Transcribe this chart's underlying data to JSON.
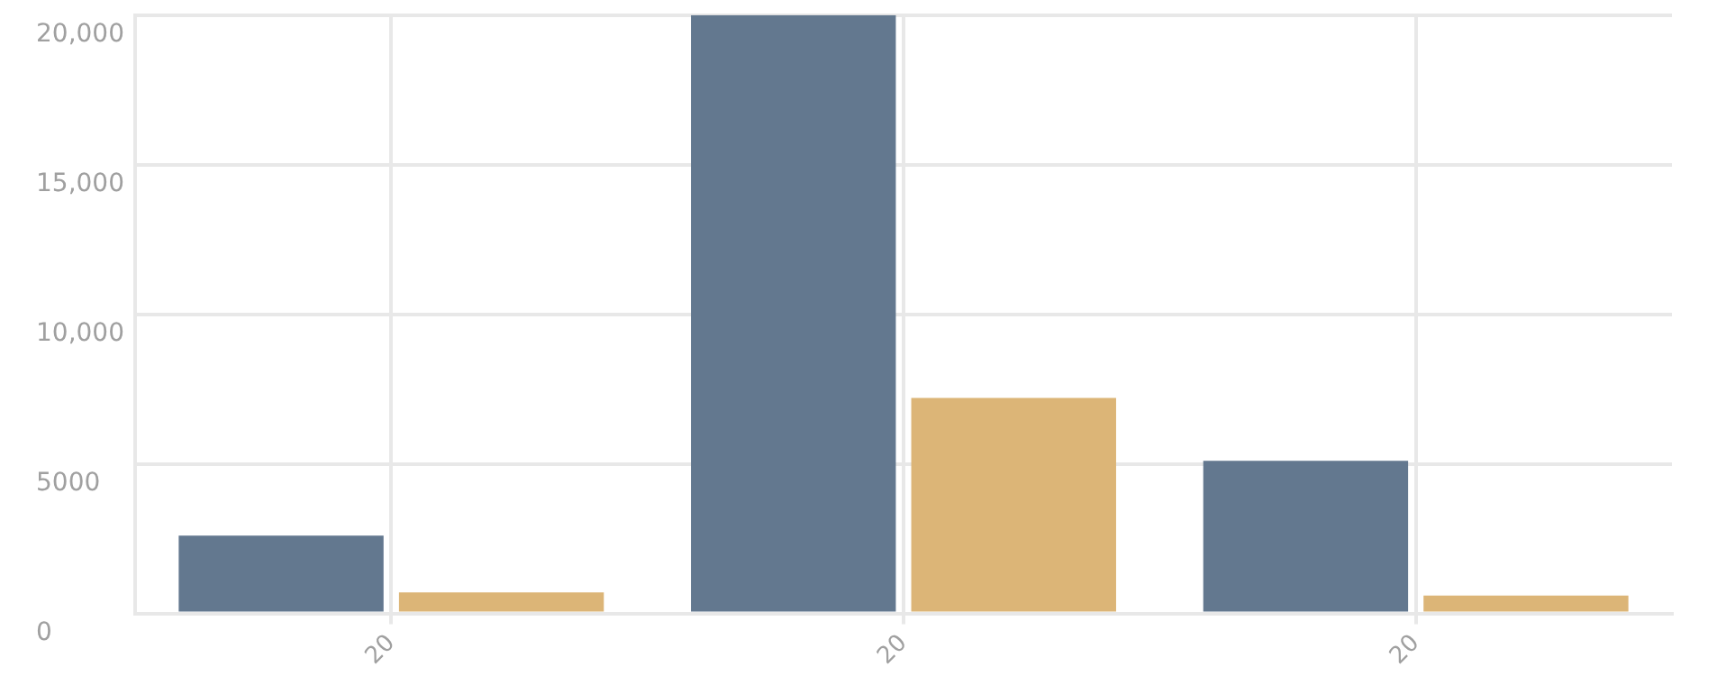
{
  "chart_data": {
    "type": "bar",
    "categories": [
      "20",
      "20",
      "20"
    ],
    "series": [
      {
        "color": "#63788f",
        "values": [
          2600,
          20000,
          5100
        ]
      },
      {
        "color": "#dcb577",
        "values": [
          700,
          7200,
          600
        ]
      }
    ],
    "ylim": [
      0,
      20000
    ],
    "yticks": [
      0,
      5000,
      {
        "value": 10000,
        "label": "10,000"
      },
      {
        "value": 15000,
        "label": "15,000"
      },
      {
        "value": 20000,
        "label": "20,000"
      }
    ],
    "grid": true,
    "legend": false
  }
}
